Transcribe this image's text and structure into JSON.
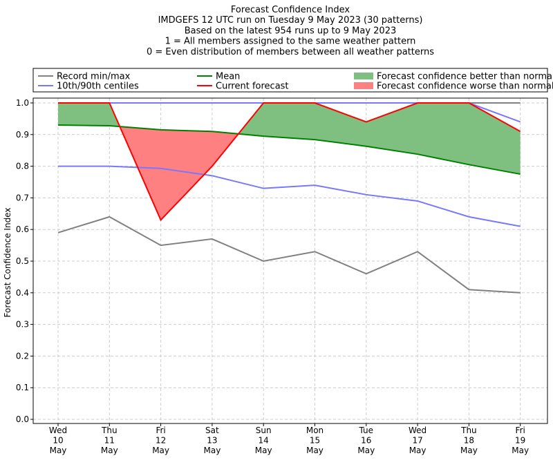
{
  "chart_data": {
    "type": "line",
    "title_lines": [
      "Forecast Confidence Index",
      "IMDGEFS 12 UTC run on Tuesday 9 May 2023 (30 patterns)",
      "Based on the latest 954 runs up to 9 May 2023",
      "1 = All members assigned to the same weather pattern",
      "0 = Even distribution of members between all weather patterns"
    ],
    "ylabel": "Forecast Confidence Index",
    "ylim": [
      0,
      1
    ],
    "yticks": [
      "0.0",
      "0.1",
      "0.2",
      "0.3",
      "0.4",
      "0.5",
      "0.6",
      "0.7",
      "0.8",
      "0.9",
      "1.0"
    ],
    "grid": true,
    "legend_position": "top",
    "categories": [
      {
        "day": "Wed",
        "date": "10",
        "month": "May"
      },
      {
        "day": "Thu",
        "date": "11",
        "month": "May"
      },
      {
        "day": "Fri",
        "date": "12",
        "month": "May"
      },
      {
        "day": "Sat",
        "date": "13",
        "month": "May"
      },
      {
        "day": "Sun",
        "date": "14",
        "month": "May"
      },
      {
        "day": "Mon",
        "date": "15",
        "month": "May"
      },
      {
        "day": "Tue",
        "date": "16",
        "month": "May"
      },
      {
        "day": "Wed",
        "date": "17",
        "month": "May"
      },
      {
        "day": "Thu",
        "date": "18",
        "month": "May"
      },
      {
        "day": "Fri",
        "date": "19",
        "month": "May"
      }
    ],
    "series": [
      {
        "key": "record_max",
        "color": "#808080",
        "values": [
          1.0,
          1.0,
          1.0,
          1.0,
          1.0,
          1.0,
          1.0,
          1.0,
          1.0,
          1.0
        ]
      },
      {
        "key": "record_min",
        "color": "#808080",
        "values": [
          0.59,
          0.64,
          0.55,
          0.57,
          0.5,
          0.53,
          0.46,
          0.53,
          0.41,
          0.4
        ]
      },
      {
        "key": "p90",
        "color": "#7777ff",
        "values": [
          1.0,
          1.0,
          1.0,
          1.0,
          1.0,
          1.0,
          1.0,
          1.0,
          1.0,
          0.94
        ]
      },
      {
        "key": "p10",
        "color": "#7777ff",
        "values": [
          0.8,
          0.8,
          0.793,
          0.77,
          0.73,
          0.74,
          0.71,
          0.69,
          0.64,
          0.61
        ]
      },
      {
        "key": "mean",
        "color": "#008000",
        "values": [
          0.93,
          0.928,
          0.915,
          0.91,
          0.895,
          0.884,
          0.863,
          0.838,
          0.805,
          0.775
        ]
      },
      {
        "key": "current",
        "color": "#ff0000",
        "values": [
          1.0,
          1.0,
          0.63,
          0.8,
          1.0,
          1.0,
          0.94,
          1.0,
          1.0,
          0.91
        ]
      }
    ],
    "fills": {
      "better_color": "#7fbf7f",
      "worse_color": "#ff8080"
    },
    "legend": [
      {
        "label": "Record min/max",
        "kind": "line",
        "color": "#808080"
      },
      {
        "label": "Mean",
        "kind": "line",
        "color": "#008000"
      },
      {
        "label": "Forecast confidence better than normal",
        "kind": "patch",
        "color": "#7fbf7f"
      },
      {
        "label": "10th/90th centiles",
        "kind": "line",
        "color": "#7777ff"
      },
      {
        "label": "Current forecast",
        "kind": "line",
        "color": "#ff0000"
      },
      {
        "label": "Forecast confidence worse than normal",
        "kind": "patch",
        "color": "#ff8080"
      }
    ]
  }
}
